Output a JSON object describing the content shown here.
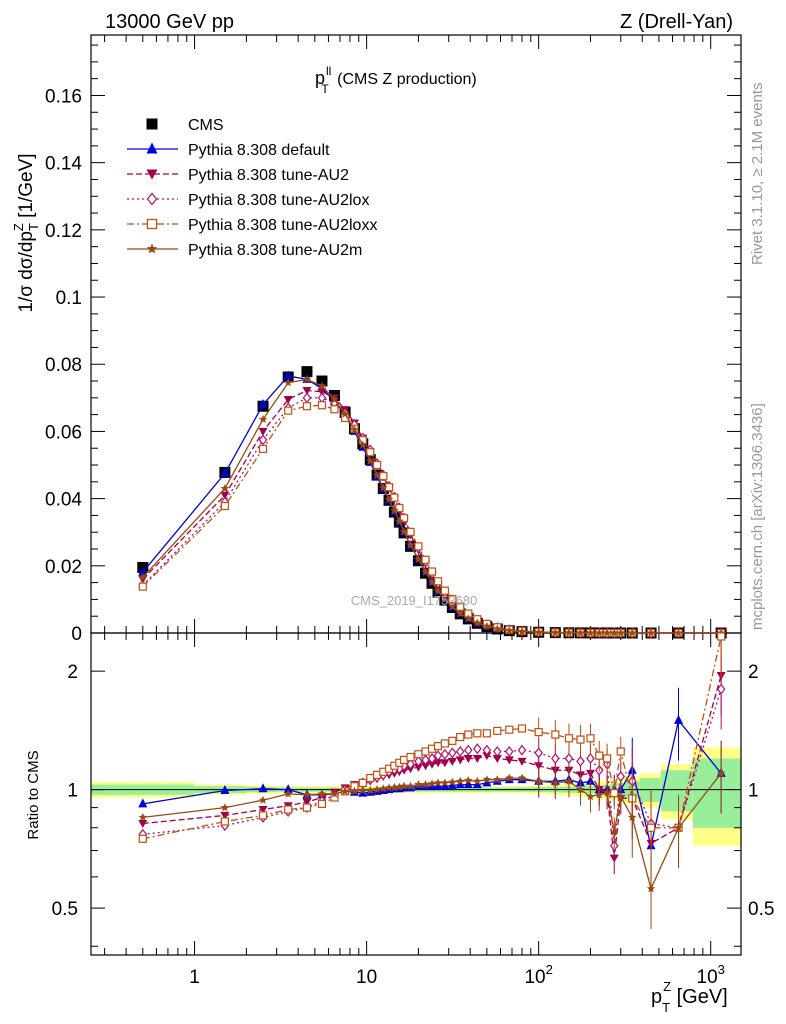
{
  "header": {
    "left": "13000 GeV pp",
    "right": "Z (Drell-Yan)"
  },
  "plot_title": {
    "main": "p",
    "sup": "ll",
    "sub": "T",
    "rest": " (CMS Z production)"
  },
  "y_axis_label": {
    "part1": "1/σ dσ/dp",
    "sub": "T",
    "sup": "Z",
    "part2": " [1/GeV]"
  },
  "ratio_axis_label": "Ratio to CMS",
  "x_axis_label": {
    "main": "p",
    "sub": "T",
    "sup": "Z",
    "rest": " [GeV]"
  },
  "watermark": "CMS_2019_I1753680",
  "side_text": {
    "top": "Rivet 3.1.10, ≥ 2.1M events",
    "bottom": "mcplots.cern.ch [arXiv:1306.3436]"
  },
  "legend": [
    {
      "label": "CMS",
      "color": "#000000",
      "marker": "square-filled",
      "line": "none"
    },
    {
      "label": "Pythia 8.308 default",
      "color": "#0000dd",
      "marker": "triangle-up-filled",
      "line": "solid"
    },
    {
      "label": "Pythia 8.308 tune-AU2",
      "color": "#a0004a",
      "marker": "triangle-down-filled",
      "line": "dashed"
    },
    {
      "label": "Pythia 8.308 tune-AU2lox",
      "color": "#b0106a",
      "marker": "diamond-open",
      "line": "dotted"
    },
    {
      "label": "Pythia 8.308 tune-AU2loxx",
      "color": "#c05010",
      "marker": "square-open",
      "line": "dashdot"
    },
    {
      "label": "Pythia 8.308 tune-AU2m",
      "color": "#9a4a10",
      "marker": "star",
      "line": "solid"
    }
  ],
  "chart_data": {
    "type": "line",
    "x_scale": "log",
    "xlim": [
      0.25,
      1500
    ],
    "x_ticks": [
      {
        "value": 1,
        "label": "1"
      },
      {
        "value": 10,
        "label": "10"
      },
      {
        "value": 100,
        "label": "10",
        "sup": "2"
      },
      {
        "value": 1000,
        "label": "10",
        "sup": "3"
      }
    ],
    "main_panel": {
      "ylim": [
        0,
        0.178
      ],
      "y_ticks": [
        0,
        0.02,
        0.04,
        0.06,
        0.08,
        0.1,
        0.12,
        0.14,
        0.16
      ],
      "y_tick_labels": [
        "0",
        "0.02",
        "0.04",
        "0.06",
        "0.08",
        "0.1",
        "0.12",
        "0.14",
        "0.16"
      ]
    },
    "ratio_panel": {
      "y_scale": "log",
      "ylim": [
        0.38,
        2.5
      ],
      "y_ticks": [
        0.5,
        1,
        2
      ],
      "y_tick_labels": [
        "0.5",
        "1",
        "2"
      ]
    },
    "x": [
      0.5,
      1.5,
      2.5,
      3.5,
      4.5,
      5.5,
      6.5,
      7.5,
      8.5,
      9.5,
      10.5,
      11.5,
      12.5,
      13.5,
      14.5,
      15.5,
      16.5,
      18,
      20,
      22,
      24,
      26,
      28.5,
      31.5,
      35,
      39,
      44,
      50,
      57.5,
      67.5,
      80,
      100,
      125,
      150,
      175,
      200,
      225,
      250,
      275,
      300,
      350,
      450,
      650,
      1150
    ],
    "series": [
      {
        "name": "CMS",
        "values": [
          0.0195,
          0.0478,
          0.0675,
          0.0762,
          0.0778,
          0.075,
          0.0707,
          0.0657,
          0.0608,
          0.0563,
          0.0516,
          0.047,
          0.043,
          0.0395,
          0.036,
          0.033,
          0.0298,
          0.0258,
          0.0215,
          0.0178,
          0.0148,
          0.0122,
          0.0098,
          0.0076,
          0.0057,
          0.0042,
          0.0029,
          0.0019,
          0.0012,
          0.0007,
          0.0004,
          0.00022,
          0.00012,
          7e-05,
          4e-05,
          2.5e-05,
          1.7e-05,
          1.2e-05,
          8e-06,
          6e-06,
          4e-06,
          2e-06,
          7e-07,
          2e-07
        ]
      },
      {
        "name": "Pythia 8.308 default",
        "values": [
          0.0181,
          0.0475,
          0.068,
          0.0765,
          0.0755,
          0.0728,
          0.069,
          0.065,
          0.06,
          0.0553,
          0.0508,
          0.0465,
          0.0428,
          0.0395,
          0.0362,
          0.0332,
          0.0301,
          0.026,
          0.022,
          0.0182,
          0.0151,
          0.0125,
          0.01,
          0.0078,
          0.0059,
          0.0043,
          0.003,
          0.002,
          0.0013,
          0.00075,
          0.00042,
          0.00023,
          0.00013,
          7.5e-05,
          4.2e-05,
          2.6e-05,
          1.7e-05,
          1.2e-05,
          8e-06,
          6e-06,
          4e-06,
          1.5e-06,
          1e-06,
          2e-07
        ],
        "ratio": [
          0.92,
          0.995,
          1.005,
          1.0,
          0.97,
          0.97,
          0.975,
          0.99,
          0.985,
          0.98,
          0.985,
          0.99,
          0.995,
          1.0,
          1.005,
          1.005,
          1.01,
          1.01,
          1.02,
          1.02,
          1.02,
          1.02,
          1.02,
          1.025,
          1.03,
          1.03,
          1.03,
          1.04,
          1.05,
          1.06,
          1.06,
          1.05,
          1.05,
          1.06,
          1.04,
          1.05,
          1.0,
          1.0,
          1.0,
          1.0,
          1.12,
          0.72,
          1.5,
          1.1
        ]
      },
      {
        "name": "Pythia 8.308 tune-AU2",
        "values": [
          0.016,
          0.041,
          0.06,
          0.0695,
          0.0722,
          0.0718,
          0.07,
          0.0665,
          0.0625,
          0.058,
          0.054,
          0.05,
          0.0465,
          0.043,
          0.0398,
          0.0366,
          0.0334,
          0.0292,
          0.0247,
          0.0206,
          0.0172,
          0.0143,
          0.0115,
          0.0091,
          0.0069,
          0.0051,
          0.0036,
          0.0024,
          0.0015,
          0.0009,
          0.0005,
          0.00027,
          0.00014,
          8e-05,
          4.5e-05,
          2.7e-05,
          1.8e-05,
          1.2e-05,
          8e-06,
          5e-06,
          4e-06,
          1.5e-06,
          7e-07,
          2e-07
        ],
        "ratio": [
          0.82,
          0.86,
          0.89,
          0.91,
          0.93,
          0.955,
          0.985,
          1.01,
          1.03,
          1.03,
          1.05,
          1.065,
          1.08,
          1.09,
          1.1,
          1.11,
          1.12,
          1.13,
          1.14,
          1.15,
          1.16,
          1.17,
          1.17,
          1.18,
          1.19,
          1.2,
          1.2,
          1.22,
          1.2,
          1.19,
          1.18,
          1.15,
          1.12,
          1.12,
          1.09,
          1.1,
          1.0,
          0.98,
          0.67,
          0.95,
          0.95,
          0.73,
          0.8,
          1.95
        ]
      },
      {
        "name": "Pythia 8.308 tune-AU2lox",
        "values": [
          0.0142,
          0.039,
          0.0575,
          0.067,
          0.07,
          0.07,
          0.0685,
          0.0655,
          0.062,
          0.058,
          0.0545,
          0.0505,
          0.047,
          0.0437,
          0.0405,
          0.0373,
          0.0342,
          0.0298,
          0.0253,
          0.0212,
          0.0177,
          0.0148,
          0.012,
          0.0095,
          0.0072,
          0.0053,
          0.0038,
          0.0025,
          0.0016,
          0.00095,
          0.00053,
          0.00029,
          0.00015,
          9e-05,
          5e-05,
          3e-05,
          2e-05,
          1.3e-05,
          9e-06,
          6e-06,
          4e-06,
          1.5e-06,
          7e-07,
          3e-07
        ],
        "ratio": [
          0.77,
          0.81,
          0.85,
          0.88,
          0.9,
          0.935,
          0.97,
          1.0,
          1.02,
          1.04,
          1.06,
          1.075,
          1.09,
          1.11,
          1.125,
          1.13,
          1.15,
          1.16,
          1.18,
          1.19,
          1.2,
          1.22,
          1.23,
          1.24,
          1.25,
          1.26,
          1.27,
          1.26,
          1.25,
          1.25,
          1.26,
          1.24,
          1.2,
          1.2,
          1.18,
          1.2,
          1.12,
          1.16,
          0.72,
          1.08,
          1.05,
          0.82,
          0.8,
          1.8
        ]
      },
      {
        "name": "Pythia 8.308 tune-AU2loxx",
        "values": [
          0.0138,
          0.0378,
          0.0548,
          0.0662,
          0.0675,
          0.0678,
          0.0666,
          0.064,
          0.0608,
          0.0574,
          0.0538,
          0.05,
          0.0467,
          0.0434,
          0.0403,
          0.0372,
          0.0342,
          0.0301,
          0.0258,
          0.0218,
          0.0183,
          0.0154,
          0.0126,
          0.0101,
          0.0078,
          0.0058,
          0.0041,
          0.0027,
          0.0017,
          0.001,
          0.00056,
          0.0003,
          0.00016,
          9e-05,
          5e-05,
          3e-05,
          2e-05,
          1.3e-05,
          9e-06,
          6e-06,
          4e-06,
          1.5e-06,
          6e-07,
          2e-07
        ],
        "ratio": [
          0.75,
          0.83,
          0.86,
          0.89,
          0.9,
          0.92,
          0.955,
          0.99,
          1.02,
          1.04,
          1.07,
          1.09,
          1.11,
          1.13,
          1.15,
          1.17,
          1.19,
          1.21,
          1.23,
          1.25,
          1.27,
          1.29,
          1.31,
          1.33,
          1.36,
          1.38,
          1.39,
          1.39,
          1.41,
          1.42,
          1.43,
          1.4,
          1.38,
          1.35,
          1.34,
          1.35,
          1.22,
          1.2,
          0.98,
          1.25,
          0.95,
          0.8,
          0.8,
          2.45
        ]
      },
      {
        "name": "Pythia 8.308 tune-AU2m",
        "values": [
          0.0166,
          0.043,
          0.0636,
          0.0745,
          0.0755,
          0.0735,
          0.0695,
          0.0652,
          0.0605,
          0.056,
          0.0512,
          0.047,
          0.0432,
          0.0398,
          0.0364,
          0.0333,
          0.0302,
          0.0262,
          0.022,
          0.0182,
          0.0151,
          0.0125,
          0.01,
          0.0078,
          0.0058,
          0.0043,
          0.003,
          0.002,
          0.0012,
          0.00072,
          0.0004,
          0.00022,
          0.00012,
          7e-05,
          4e-05,
          2.5e-05,
          1.6e-05,
          1.1e-05,
          7e-06,
          5e-06,
          4e-06,
          1.1e-06,
          7e-07,
          2e-07
        ],
        "ratio": [
          0.85,
          0.9,
          0.94,
          0.975,
          0.97,
          0.975,
          0.975,
          0.99,
          0.99,
          0.995,
          0.995,
          1.0,
          1.005,
          1.01,
          1.01,
          1.015,
          1.02,
          1.02,
          1.03,
          1.03,
          1.035,
          1.04,
          1.04,
          1.045,
          1.05,
          1.055,
          1.05,
          1.06,
          1.06,
          1.07,
          1.07,
          1.05,
          1.04,
          1.05,
          1.0,
          0.96,
          0.97,
          0.98,
          0.78,
          0.96,
          0.85,
          0.56,
          0.8,
          1.1
        ]
      }
    ],
    "data_uncertainty": {
      "x_edges": [
        0.25,
        1,
        2,
        3,
        4,
        5,
        6,
        7,
        8,
        9,
        10,
        11,
        12,
        13,
        14,
        15,
        16,
        17,
        19,
        21,
        23,
        25,
        27,
        30,
        33,
        37,
        41,
        47,
        53,
        62,
        73,
        87,
        113,
        137,
        163,
        187,
        213,
        237,
        263,
        287,
        313,
        387,
        513,
        787,
        1500
      ],
      "inner_frac": [
        0.03,
        0.02,
        0.015,
        0.012,
        0.012,
        0.012,
        0.012,
        0.012,
        0.012,
        0.012,
        0.012,
        0.012,
        0.012,
        0.012,
        0.012,
        0.012,
        0.012,
        0.012,
        0.012,
        0.012,
        0.012,
        0.012,
        0.012,
        0.012,
        0.012,
        0.012,
        0.012,
        0.012,
        0.012,
        0.012,
        0.013,
        0.014,
        0.016,
        0.018,
        0.02,
        0.022,
        0.025,
        0.03,
        0.035,
        0.04,
        0.05,
        0.07,
        0.12,
        0.2
      ],
      "outer_frac": [
        0.045,
        0.03,
        0.025,
        0.02,
        0.02,
        0.02,
        0.02,
        0.02,
        0.02,
        0.02,
        0.02,
        0.02,
        0.02,
        0.02,
        0.02,
        0.02,
        0.02,
        0.02,
        0.02,
        0.02,
        0.02,
        0.02,
        0.02,
        0.02,
        0.02,
        0.02,
        0.02,
        0.02,
        0.02,
        0.02,
        0.022,
        0.025,
        0.03,
        0.035,
        0.04,
        0.045,
        0.05,
        0.055,
        0.06,
        0.07,
        0.08,
        0.1,
        0.16,
        0.28
      ]
    },
    "colors": {
      "band_inner": "#99ee99",
      "band_outer": "#ffff88"
    }
  }
}
